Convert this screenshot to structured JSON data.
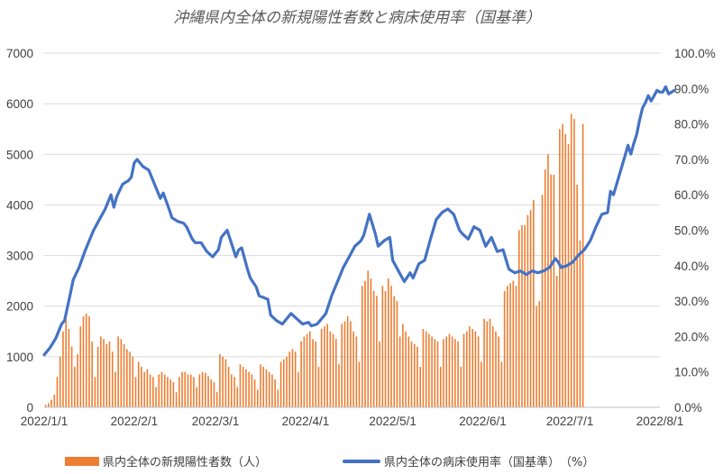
{
  "chart_data": {
    "type": "bar+line",
    "title": "沖縄県内全体の新規陽性者数と病床使用率（国基準）",
    "x_axis": {
      "type": "date",
      "start": "2022-01-01",
      "end": "2022-08-01",
      "tick_labels": [
        "2022/1/1",
        "2022/2/1",
        "2022/3/1",
        "2022/4/1",
        "2022/5/1",
        "2022/6/1",
        "2022/7/1",
        "2022/8/1"
      ],
      "tick_dates": [
        "2022-01-01",
        "2022-02-01",
        "2022-03-01",
        "2022-04-01",
        "2022-05-01",
        "2022-06-01",
        "2022-07-01",
        "2022-08-01"
      ]
    },
    "y_left": {
      "min": 0,
      "max": 7000,
      "step": 1000,
      "tick_labels": [
        "0",
        "1000",
        "2000",
        "3000",
        "4000",
        "5000",
        "6000",
        "7000"
      ]
    },
    "y_right": {
      "min": 0,
      "max": 100,
      "step": 10,
      "tick_labels": [
        "0.0%",
        "10.0%",
        "20.0%",
        "30.0%",
        "40.0%",
        "50.0%",
        "60.0%",
        "70.0%",
        "80.0%",
        "90.0%",
        "100.0%"
      ]
    },
    "grid": "horizontal",
    "legend_position": "bottom",
    "series": [
      {
        "name": "県内全体の新規陽性者数（人）",
        "kind": "bar",
        "axis": "left",
        "color": "#ED7D31",
        "start_date": "2022-01-01",
        "values": [
          50,
          80,
          150,
          250,
          600,
          1000,
          1500,
          1750,
          1550,
          1200,
          800,
          1050,
          1600,
          1800,
          1850,
          1800,
          1300,
          600,
          1200,
          1400,
          1350,
          1250,
          1300,
          1100,
          700,
          1400,
          1350,
          1250,
          1150,
          1100,
          1000,
          600,
          900,
          800,
          700,
          750,
          650,
          600,
          400,
          650,
          700,
          650,
          600,
          550,
          500,
          300,
          600,
          700,
          700,
          650,
          650,
          600,
          400,
          650,
          700,
          680,
          620,
          550,
          500,
          300,
          1050,
          1000,
          950,
          800,
          650,
          600,
          400,
          850,
          800,
          750,
          700,
          650,
          550,
          350,
          850,
          800,
          750,
          700,
          650,
          550,
          350,
          900,
          950,
          1000,
          1100,
          1150,
          1100,
          700,
          1300,
          1400,
          1450,
          1500,
          1350,
          1300,
          800,
          1550,
          1600,
          1650,
          1500,
          1450,
          1350,
          850,
          1650,
          1700,
          1800,
          1700,
          1500,
          1400,
          900,
          2400,
          2500,
          2700,
          2550,
          2300,
          2200,
          1300,
          2400,
          2300,
          2550,
          2400,
          2200,
          2100,
          1400,
          1650,
          1500,
          1400,
          1300,
          1250,
          1200,
          800,
          1550,
          1500,
          1450,
          1400,
          1350,
          1300,
          800,
          1350,
          1400,
          1450,
          1400,
          1350,
          1300,
          800,
          1450,
          1500,
          1600,
          1550,
          1500,
          1400,
          900,
          1750,
          1700,
          1750,
          1600,
          1500,
          1400,
          900,
          2300,
          2400,
          2450,
          2500,
          2400,
          3500,
          3600,
          3600,
          3800,
          3900,
          4100,
          2000,
          2100,
          4200,
          4700,
          5000,
          4600,
          4600,
          2600,
          5500,
          5600,
          5400,
          5200,
          5800,
          5700,
          4400,
          3300,
          5600
        ]
      },
      {
        "name": "県内全体の病床使用率（国基準）　（%）",
        "kind": "line",
        "axis": "right",
        "color": "#4472C4",
        "points": [
          [
            "2022-01-01",
            14.8
          ],
          [
            "2022-01-03",
            16.8
          ],
          [
            "2022-01-05",
            19.5
          ],
          [
            "2022-01-07",
            23.5
          ],
          [
            "2022-01-08",
            24.5
          ],
          [
            "2022-01-10",
            32.0
          ],
          [
            "2022-01-11",
            36.0
          ],
          [
            "2022-01-13",
            39.5
          ],
          [
            "2022-01-15",
            44.0
          ],
          [
            "2022-01-16",
            46.0
          ],
          [
            "2022-01-18",
            50.0
          ],
          [
            "2022-01-20",
            53.0
          ],
          [
            "2022-01-22",
            56.0
          ],
          [
            "2022-01-24",
            60.0
          ],
          [
            "2022-01-25",
            56.5
          ],
          [
            "2022-01-26",
            59.5
          ],
          [
            "2022-01-28",
            63.0
          ],
          [
            "2022-01-30",
            64.0
          ],
          [
            "2022-01-31",
            65.0
          ],
          [
            "2022-02-01",
            69.0
          ],
          [
            "2022-02-02",
            70.0
          ],
          [
            "2022-02-04",
            68.0
          ],
          [
            "2022-02-06",
            67.0
          ],
          [
            "2022-02-08",
            63.0
          ],
          [
            "2022-02-10",
            59.0
          ],
          [
            "2022-02-11",
            60.5
          ],
          [
            "2022-02-13",
            56.0
          ],
          [
            "2022-02-14",
            53.5
          ],
          [
            "2022-02-16",
            52.5
          ],
          [
            "2022-02-18",
            52.0
          ],
          [
            "2022-02-19",
            51.0
          ],
          [
            "2022-02-21",
            47.5
          ],
          [
            "2022-02-22",
            46.5
          ],
          [
            "2022-02-24",
            46.5
          ],
          [
            "2022-02-26",
            44.0
          ],
          [
            "2022-02-28",
            42.5
          ],
          [
            "2022-03-02",
            44.5
          ],
          [
            "2022-03-03",
            48.0
          ],
          [
            "2022-03-05",
            50.0
          ],
          [
            "2022-03-06",
            47.5
          ],
          [
            "2022-03-08",
            42.5
          ],
          [
            "2022-03-09",
            44.5
          ],
          [
            "2022-03-10",
            45.0
          ],
          [
            "2022-03-12",
            39.0
          ],
          [
            "2022-03-13",
            36.5
          ],
          [
            "2022-03-15",
            34.0
          ],
          [
            "2022-03-16",
            31.5
          ],
          [
            "2022-03-19",
            30.5
          ],
          [
            "2022-03-20",
            26.0
          ],
          [
            "2022-03-22",
            24.5
          ],
          [
            "2022-03-24",
            23.5
          ],
          [
            "2022-03-26",
            25.5
          ],
          [
            "2022-03-27",
            26.5
          ],
          [
            "2022-03-29",
            25.0
          ],
          [
            "2022-03-31",
            23.5
          ],
          [
            "2022-04-02",
            24.0
          ],
          [
            "2022-04-03",
            23.0
          ],
          [
            "2022-04-05",
            23.5
          ],
          [
            "2022-04-06",
            24.5
          ],
          [
            "2022-04-08",
            26.5
          ],
          [
            "2022-04-10",
            31.5
          ],
          [
            "2022-04-12",
            35.5
          ],
          [
            "2022-04-14",
            39.5
          ],
          [
            "2022-04-16",
            42.5
          ],
          [
            "2022-04-18",
            45.5
          ],
          [
            "2022-04-20",
            47.0
          ],
          [
            "2022-04-21",
            48.5
          ],
          [
            "2022-04-23",
            54.5
          ],
          [
            "2022-04-25",
            49.0
          ],
          [
            "2022-04-26",
            45.5
          ],
          [
            "2022-04-28",
            47.0
          ],
          [
            "2022-04-30",
            48.0
          ],
          [
            "2022-05-01",
            41.5
          ],
          [
            "2022-05-03",
            38.5
          ],
          [
            "2022-05-05",
            35.5
          ],
          [
            "2022-05-07",
            38.0
          ],
          [
            "2022-05-08",
            36.5
          ],
          [
            "2022-05-10",
            40.5
          ],
          [
            "2022-05-12",
            41.5
          ],
          [
            "2022-05-14",
            47.5
          ],
          [
            "2022-05-16",
            53.0
          ],
          [
            "2022-05-18",
            55.0
          ],
          [
            "2022-05-20",
            56.0
          ],
          [
            "2022-05-22",
            54.5
          ],
          [
            "2022-05-24",
            50.0
          ],
          [
            "2022-05-25",
            49.0
          ],
          [
            "2022-05-27",
            47.5
          ],
          [
            "2022-05-29",
            51.0
          ],
          [
            "2022-05-31",
            50.0
          ],
          [
            "2022-06-02",
            45.5
          ],
          [
            "2022-06-04",
            48.0
          ],
          [
            "2022-06-06",
            44.0
          ],
          [
            "2022-06-08",
            44.5
          ],
          [
            "2022-06-10",
            39.0
          ],
          [
            "2022-06-12",
            38.0
          ],
          [
            "2022-06-14",
            38.5
          ],
          [
            "2022-06-16",
            37.5
          ],
          [
            "2022-06-18",
            38.5
          ],
          [
            "2022-06-20",
            38.0
          ],
          [
            "2022-06-22",
            38.5
          ],
          [
            "2022-06-24",
            39.5
          ],
          [
            "2022-06-26",
            42.0
          ],
          [
            "2022-06-27",
            41.0
          ],
          [
            "2022-06-28",
            39.5
          ],
          [
            "2022-06-30",
            40.0
          ],
          [
            "2022-07-02",
            41.0
          ],
          [
            "2022-07-04",
            43.0
          ],
          [
            "2022-07-06",
            44.5
          ],
          [
            "2022-07-08",
            47.0
          ],
          [
            "2022-07-10",
            51.0
          ],
          [
            "2022-07-12",
            54.5
          ],
          [
            "2022-07-14",
            55.0
          ],
          [
            "2022-07-15",
            61.0
          ],
          [
            "2022-07-16",
            60.0
          ],
          [
            "2022-07-18",
            65.5
          ],
          [
            "2022-07-20",
            71.0
          ],
          [
            "2022-07-21",
            74.0
          ],
          [
            "2022-07-22",
            71.5
          ],
          [
            "2022-07-23",
            74.5
          ],
          [
            "2022-07-24",
            77.0
          ],
          [
            "2022-07-25",
            81.0
          ],
          [
            "2022-07-26",
            84.5
          ],
          [
            "2022-07-27",
            86.0
          ],
          [
            "2022-07-28",
            88.0
          ],
          [
            "2022-07-29",
            86.5
          ],
          [
            "2022-07-30",
            88.0
          ],
          [
            "2022-07-31",
            89.5
          ],
          [
            "2022-08-01",
            89.0
          ],
          [
            "2022-08-02",
            89.0
          ],
          [
            "2022-08-03",
            90.5
          ],
          [
            "2022-08-04",
            88.5
          ],
          [
            "2022-08-06",
            89.5
          ]
        ]
      }
    ]
  }
}
